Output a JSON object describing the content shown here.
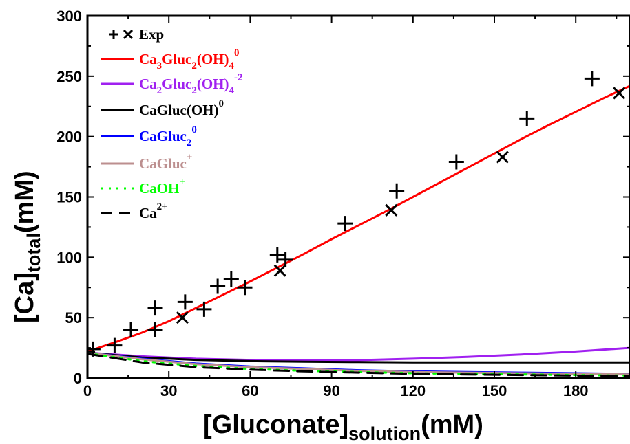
{
  "chart_data": {
    "type": "line",
    "xlabel": "[Gluconate]",
    "xlabel_sub": "solution",
    "xlabel_unit": "(mM)",
    "ylabel": "[Ca]",
    "ylabel_sub": "total",
    "ylabel_unit": "(mM)",
    "xlim": [
      0,
      200
    ],
    "ylim": [
      0,
      300
    ],
    "xticks": [
      0,
      30,
      60,
      90,
      120,
      150,
      180
    ],
    "yticks": [
      0,
      50,
      100,
      150,
      200,
      250,
      300
    ],
    "grid": false,
    "legend_position": "top-left",
    "legend": [
      {
        "text": "Exp",
        "sub": "",
        "sup": "",
        "color": "#000000",
        "marker": "+x",
        "dash": ""
      },
      {
        "text": "Ca",
        "parts": [
          [
            "Ca",
            ""
          ],
          [
            "3",
            "sub"
          ],
          [
            "Gluc",
            ""
          ],
          [
            "2",
            "sub"
          ],
          [
            "(OH)",
            ""
          ],
          [
            "4",
            "sub"
          ],
          [
            "0",
            "sup"
          ]
        ],
        "color": "#ff0000",
        "dash": "solid"
      },
      {
        "text": "Ca",
        "parts": [
          [
            "Ca",
            ""
          ],
          [
            "2",
            "sub"
          ],
          [
            "Gluc",
            ""
          ],
          [
            "2",
            "sub"
          ],
          [
            "(OH)",
            ""
          ],
          [
            "4",
            "sub"
          ],
          [
            "-2",
            "sup"
          ]
        ],
        "color": "#a020f0",
        "dash": "solid"
      },
      {
        "text": "CaGluc(OH)",
        "parts": [
          [
            "CaGluc(OH)",
            ""
          ],
          [
            "0",
            "sup"
          ]
        ],
        "color": "#000000",
        "dash": "solid"
      },
      {
        "text": "CaGluc",
        "parts": [
          [
            "CaGluc",
            ""
          ],
          [
            "2",
            "sub"
          ],
          [
            "0",
            "sup"
          ]
        ],
        "color": "#0000ff",
        "dash": "solid"
      },
      {
        "text": "CaGluc",
        "parts": [
          [
            "CaGluc",
            ""
          ],
          [
            "+",
            "sup"
          ]
        ],
        "color": "#bc8f8f",
        "dash": "solid"
      },
      {
        "text": "CaOH",
        "parts": [
          [
            "CaOH",
            ""
          ],
          [
            "+",
            "sup"
          ]
        ],
        "color": "#00ff00",
        "dash": "dotted"
      },
      {
        "text": "Ca",
        "parts": [
          [
            "Ca",
            ""
          ],
          [
            "2+",
            "sup"
          ]
        ],
        "color": "#000000",
        "dash": "dashed"
      }
    ],
    "series": [
      {
        "name": "Ca3Gluc2(OH)4 0",
        "color": "#ff0000",
        "style": "solid",
        "x": [
          0,
          10,
          20,
          30,
          40,
          50,
          60,
          70,
          80,
          90,
          100,
          110,
          120,
          130,
          140,
          150,
          160,
          170,
          180,
          190,
          200
        ],
        "y": [
          22,
          29.5,
          37.5,
          47,
          58,
          69,
          80,
          91.5,
          103,
          115,
          126.5,
          138,
          150,
          162,
          174,
          186,
          198,
          209.5,
          220.5,
          231.5,
          242
        ]
      },
      {
        "name": "Ca2Gluc2(OH)4 -2",
        "color": "#a020f0",
        "style": "solid",
        "x": [
          0,
          20,
          40,
          60,
          80,
          100,
          120,
          140,
          160,
          180,
          200
        ],
        "y": [
          21,
          18,
          16,
          15,
          14.5,
          14.8,
          16,
          17.5,
          19.5,
          22,
          25
        ]
      },
      {
        "name": "CaGluc(OH) 0",
        "color": "#000000",
        "style": "solid",
        "x": [
          0,
          20,
          40,
          60,
          80,
          100,
          120,
          140,
          160,
          180,
          200
        ],
        "y": [
          21,
          17,
          15,
          14,
          13.5,
          13.2,
          13,
          13,
          13,
          13,
          13
        ]
      },
      {
        "name": "CaGluc2 0",
        "color": "#0000ff",
        "style": "solid",
        "x": [
          0,
          20,
          40,
          60,
          80,
          100,
          120,
          140,
          160,
          180,
          200
        ],
        "y": [
          21,
          16,
          12,
          9.5,
          8,
          6.5,
          5.5,
          5,
          4.5,
          4,
          3.5
        ]
      },
      {
        "name": "CaGluc+",
        "color": "#bc8f8f",
        "style": "solid",
        "x": [
          0,
          20,
          40,
          60,
          80,
          100,
          120,
          140,
          160,
          180,
          200
        ],
        "y": [
          21,
          15.5,
          11.5,
          9,
          7.5,
          6,
          5,
          4.5,
          4,
          3.5,
          3
        ]
      },
      {
        "name": "CaOH+",
        "color": "#00ff00",
        "style": "dotted",
        "x": [
          0,
          20,
          40,
          60,
          80,
          100,
          120,
          140,
          160,
          180,
          200
        ],
        "y": [
          20.5,
          14,
          10,
          7.5,
          6,
          5,
          4,
          3.5,
          3,
          2.5,
          2
        ]
      },
      {
        "name": "Ca2+",
        "color": "#000000",
        "style": "dashed",
        "x": [
          0,
          20,
          40,
          60,
          80,
          100,
          120,
          140,
          160,
          180,
          200
        ],
        "y": [
          20,
          13,
          9,
          7,
          5.5,
          4.5,
          3.5,
          3,
          2.5,
          2,
          1.5
        ]
      }
    ],
    "exp_plus": [
      [
        0,
        22
      ],
      [
        2,
        24
      ],
      [
        10,
        27
      ],
      [
        16,
        40
      ],
      [
        25,
        58
      ],
      [
        25,
        40
      ],
      [
        36,
        63
      ],
      [
        43,
        57
      ],
      [
        48,
        76
      ],
      [
        53,
        82
      ],
      [
        58,
        75
      ],
      [
        70,
        102
      ],
      [
        73,
        98
      ],
      [
        95,
        128
      ],
      [
        114,
        155
      ],
      [
        136,
        179
      ],
      [
        162,
        215
      ],
      [
        186,
        248
      ]
    ],
    "exp_x": [
      [
        35,
        50
      ],
      [
        71,
        89
      ],
      [
        112,
        139
      ],
      [
        153,
        183
      ],
      [
        196,
        236
      ]
    ]
  }
}
